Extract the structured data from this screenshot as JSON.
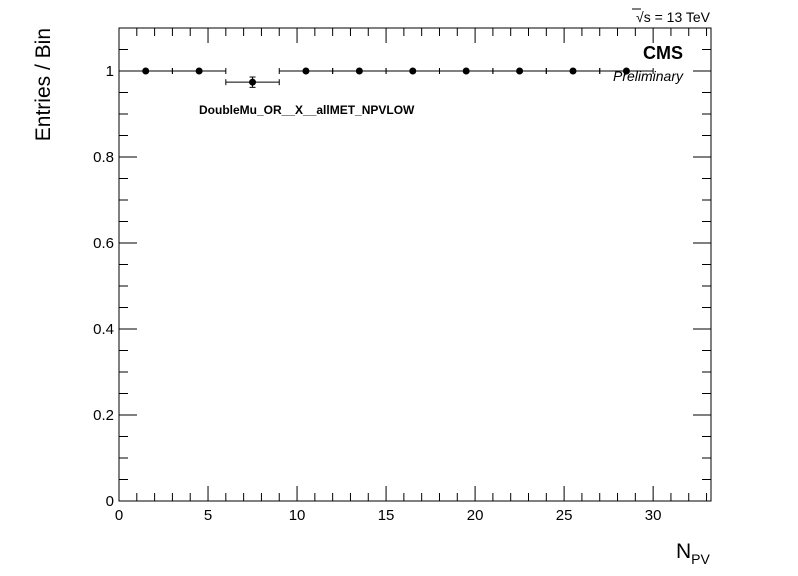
{
  "chart_data": {
    "type": "scatter",
    "ylabel": "Entries / Bin",
    "xlabel_main": "N",
    "xlabel_sub": "PV",
    "xlim": [
      0,
      33.25
    ],
    "ylim": [
      0,
      1.1
    ],
    "x_ticks": [
      0,
      5,
      10,
      15,
      20,
      25,
      30
    ],
    "x_tick_labels": [
      "0",
      "5",
      "10",
      "15",
      "20",
      "25",
      "30"
    ],
    "y_ticks": [
      0,
      0.2,
      0.4,
      0.6,
      0.8,
      1.0
    ],
    "y_tick_labels": [
      "0",
      "0.2",
      "0.4",
      "0.6",
      "0.8",
      "1"
    ],
    "points": [
      {
        "x": 1.5,
        "xerr": 1.5,
        "y": 1.0,
        "yerr": 0.0
      },
      {
        "x": 4.5,
        "xerr": 1.5,
        "y": 1.0,
        "yerr": 0.0
      },
      {
        "x": 7.5,
        "xerr": 1.5,
        "y": 0.974,
        "yerr": 0.012
      },
      {
        "x": 10.5,
        "xerr": 1.5,
        "y": 1.0,
        "yerr": 0.0
      },
      {
        "x": 13.5,
        "xerr": 1.5,
        "y": 1.0,
        "yerr": 0.0
      },
      {
        "x": 16.5,
        "xerr": 1.5,
        "y": 1.0,
        "yerr": 0.0
      },
      {
        "x": 19.5,
        "xerr": 1.5,
        "y": 1.0,
        "yerr": 0.0
      },
      {
        "x": 22.5,
        "xerr": 1.5,
        "y": 1.0,
        "yerr": 0.0
      },
      {
        "x": 25.5,
        "xerr": 1.5,
        "y": 1.0,
        "yerr": 0.0
      },
      {
        "x": 28.5,
        "xerr": 1.5,
        "y": 1.0,
        "yerr": 0.0
      }
    ],
    "grid": false,
    "marker_color": "#000000"
  },
  "annotations": {
    "energy_sqrt": "√",
    "energy_s": "s",
    "energy_rest": " = 13 TeV",
    "cms": "CMS",
    "preliminary": "Preliminary",
    "histogram_name": "DoubleMu_OR__X__allMET_NPVLOW"
  }
}
